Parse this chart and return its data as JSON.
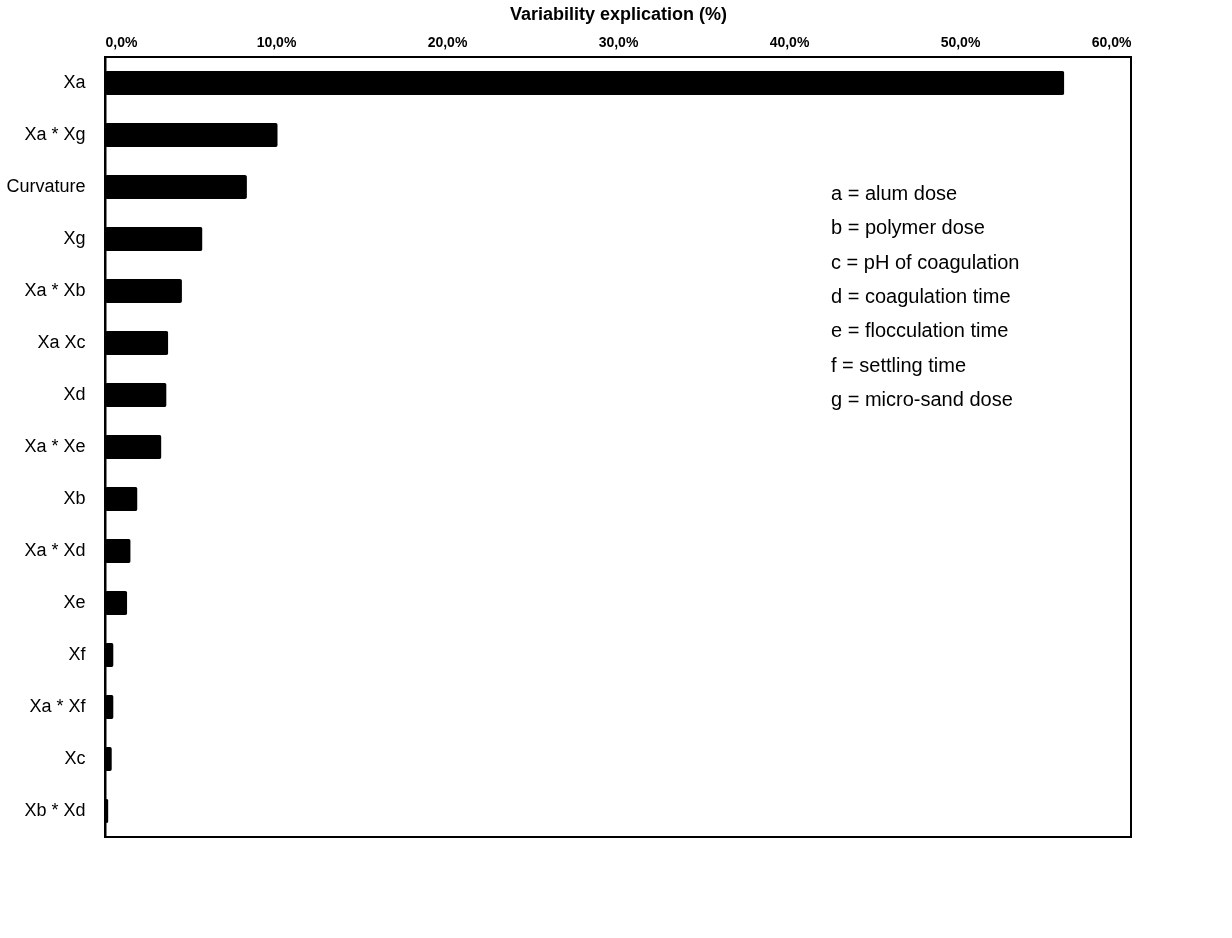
{
  "chart_data": {
    "type": "bar",
    "orientation": "horizontal",
    "xlabel": "Variability explication (%)",
    "categories": [
      "Xa",
      "Xa * Xg",
      "Curvature",
      "Xg",
      "Xa * Xb",
      "Xa Xc",
      "Xd",
      "Xa * Xe",
      "Xb",
      "Xa * Xd",
      "Xe",
      "Xf",
      "Xa * Xf",
      "Xc",
      "Xb * Xd"
    ],
    "values": [
      56.1,
      10.1,
      8.3,
      5.7,
      4.5,
      3.7,
      3.6,
      3.3,
      1.9,
      1.5,
      1.3,
      0.5,
      0.5,
      0.4,
      0.2
    ],
    "color": "#000000",
    "xlim": [
      0,
      60
    ],
    "xticks": [
      {
        "value": 0,
        "label": "0,0%"
      },
      {
        "value": 10,
        "label": "10,0%"
      },
      {
        "value": 20,
        "label": "20,0%"
      },
      {
        "value": 30,
        "label": "30,0%"
      },
      {
        "value": 40,
        "label": "40,0%"
      },
      {
        "value": 50,
        "label": "50,0%"
      },
      {
        "value": 60,
        "label": "60,0%"
      }
    ],
    "grid": false,
    "annotations": [
      "a = alum dose",
      "b = polymer dose",
      "c = pH of coagulation",
      "d = coagulation time",
      "e = flocculation time",
      "f = settling time",
      "g = micro-sand dose"
    ]
  }
}
